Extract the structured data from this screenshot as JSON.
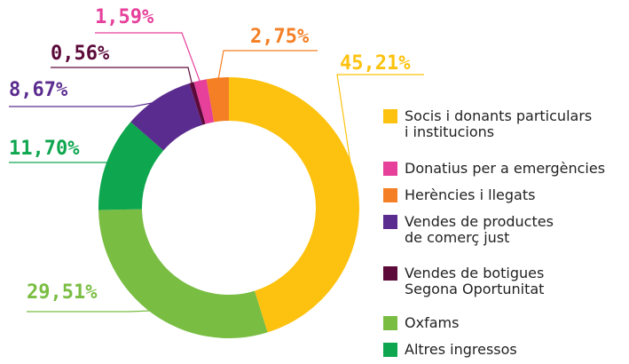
{
  "chart_data": {
    "type": "donut",
    "series": [
      {
        "name": "Socis i donants particulars\ni institucions",
        "color": "#fdc20f",
        "value": 45.21,
        "value_label": "45,21%"
      },
      {
        "name": "Oxfams",
        "color": "#79bd42",
        "value": 29.51,
        "value_label": "29,51%"
      },
      {
        "name": "Altres ingressos",
        "color": "#0ea64f",
        "value": 11.7,
        "value_label": "11,70%"
      },
      {
        "name": "Vendes de productes\nde comerç just",
        "color": "#5b2c8f",
        "value": 8.67,
        "value_label": "8,67%"
      },
      {
        "name": "Vendes de botigues\nSegona Oportunitat",
        "color": "#5c0a3a",
        "value": 0.56,
        "value_label": "0,56%"
      },
      {
        "name": "Donatius per a emergències",
        "color": "#e6409b",
        "value": 1.59,
        "value_label": "1,59%"
      },
      {
        "name": "Herències i llegats",
        "color": "#f47f24",
        "value": 2.75,
        "value_label": "2,75%"
      }
    ],
    "legend_order": [
      0,
      5,
      6,
      3,
      4,
      1,
      2
    ]
  }
}
